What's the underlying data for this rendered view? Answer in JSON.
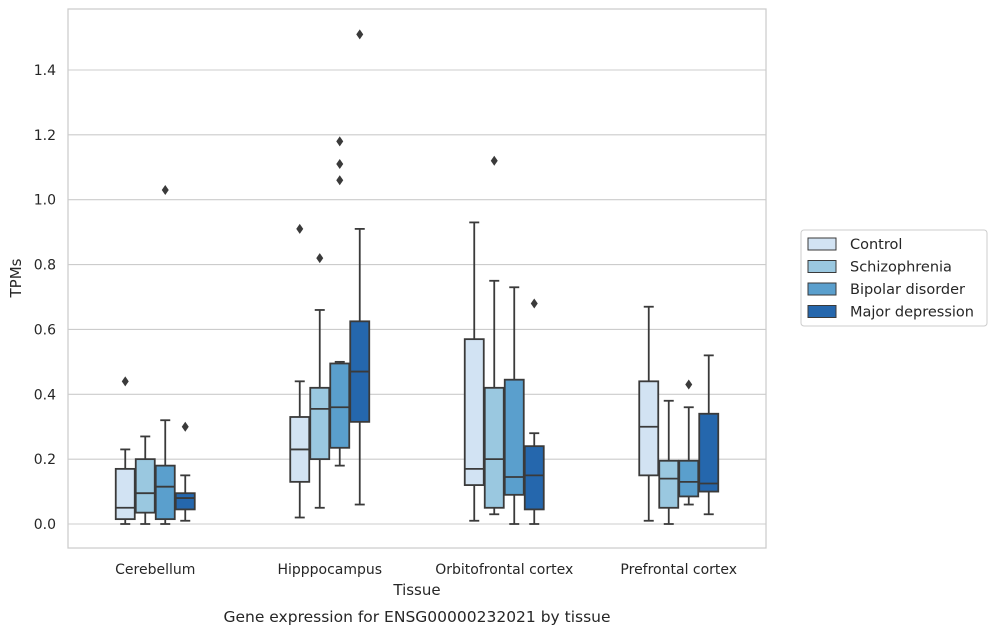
{
  "caption": "Gene expression for ENSG00000232021 by tissue",
  "chart_data": {
    "type": "box",
    "xlabel": "Tissue",
    "ylabel": "TPMs",
    "ylim": [
      -0.075,
      1.6
    ],
    "yticks": [
      "0.0",
      "0.2",
      "0.4",
      "0.6",
      "0.8",
      "1.0",
      "1.2",
      "1.4"
    ],
    "grid": "horizontal",
    "legend_position": "right",
    "categories": [
      "Cerebellum",
      "Hipppocampus",
      "Orbitofrontal cortex",
      "Prefrontal cortex"
    ],
    "series": [
      {
        "name": "Control",
        "color": "#d2e3f3",
        "boxes": [
          {
            "whislo": 0.0,
            "q1": 0.015,
            "med": 0.05,
            "q3": 0.17,
            "whishi": 0.23,
            "fliers": [
              0.44
            ]
          },
          {
            "whislo": 0.02,
            "q1": 0.13,
            "med": 0.23,
            "q3": 0.33,
            "whishi": 0.44,
            "fliers": [
              0.91
            ]
          },
          {
            "whislo": 0.01,
            "q1": 0.12,
            "med": 0.17,
            "q3": 0.57,
            "whishi": 0.93,
            "fliers": []
          },
          {
            "whislo": 0.01,
            "q1": 0.15,
            "med": 0.3,
            "q3": 0.44,
            "whishi": 0.67,
            "fliers": []
          }
        ]
      },
      {
        "name": "Schizophrenia",
        "color": "#9ac8e0",
        "boxes": [
          {
            "whislo": 0.0,
            "q1": 0.035,
            "med": 0.095,
            "q3": 0.2,
            "whishi": 0.27,
            "fliers": []
          },
          {
            "whislo": 0.05,
            "q1": 0.2,
            "med": 0.355,
            "q3": 0.42,
            "whishi": 0.66,
            "fliers": [
              0.82
            ]
          },
          {
            "whislo": 0.03,
            "q1": 0.05,
            "med": 0.2,
            "q3": 0.42,
            "whishi": 0.75,
            "fliers": [
              1.12
            ]
          },
          {
            "whislo": 0.0,
            "q1": 0.05,
            "med": 0.14,
            "q3": 0.195,
            "whishi": 0.38,
            "fliers": []
          }
        ]
      },
      {
        "name": "Bipolar disorder",
        "color": "#5a9fcd",
        "boxes": [
          {
            "whislo": 0.0,
            "q1": 0.015,
            "med": 0.115,
            "q3": 0.18,
            "whishi": 0.32,
            "fliers": [
              1.03
            ]
          },
          {
            "whislo": 0.18,
            "q1": 0.235,
            "med": 0.36,
            "q3": 0.495,
            "whishi": 0.5,
            "fliers": [
              1.06,
              1.11,
              1.18
            ]
          },
          {
            "whislo": 0.0,
            "q1": 0.09,
            "med": 0.145,
            "q3": 0.445,
            "whishi": 0.73,
            "fliers": []
          },
          {
            "whislo": 0.06,
            "q1": 0.085,
            "med": 0.13,
            "q3": 0.195,
            "whishi": 0.36,
            "fliers": [
              0.43
            ]
          }
        ]
      },
      {
        "name": "Major depression",
        "color": "#2567ad",
        "boxes": [
          {
            "whislo": 0.01,
            "q1": 0.045,
            "med": 0.08,
            "q3": 0.095,
            "whishi": 0.15,
            "fliers": [
              0.3
            ]
          },
          {
            "whislo": 0.06,
            "q1": 0.315,
            "med": 0.47,
            "q3": 0.625,
            "whishi": 0.91,
            "fliers": [
              1.51
            ]
          },
          {
            "whislo": 0.0,
            "q1": 0.045,
            "med": 0.15,
            "q3": 0.24,
            "whishi": 0.28,
            "fliers": [
              0.68
            ]
          },
          {
            "whislo": 0.03,
            "q1": 0.1,
            "med": 0.125,
            "q3": 0.34,
            "whishi": 0.52,
            "fliers": []
          }
        ]
      }
    ]
  }
}
